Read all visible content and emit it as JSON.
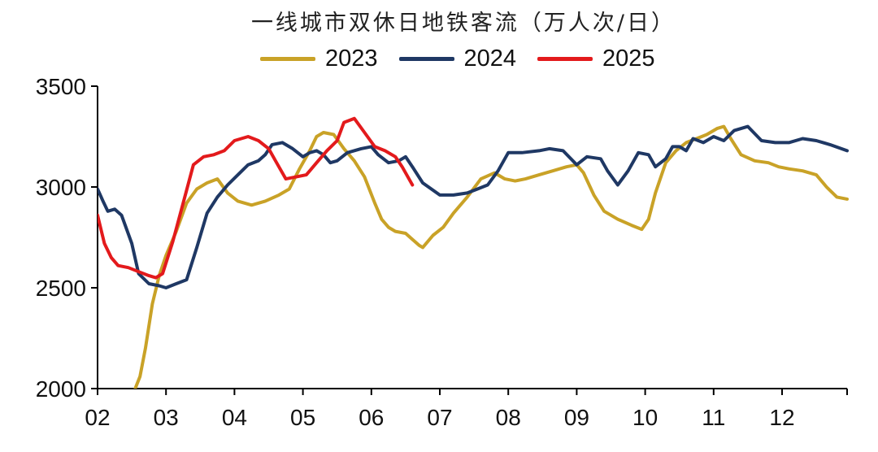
{
  "chart_data": {
    "type": "line",
    "title": "一线城市双休日地铁客流（万人次/日）",
    "xlabel": "",
    "ylabel": "",
    "x_ticks": [
      "02",
      "03",
      "04",
      "05",
      "06",
      "07",
      "08",
      "09",
      "10",
      "11",
      "12"
    ],
    "y_ticks": [
      "2000",
      "2500",
      "3000",
      "3500"
    ],
    "ylim": [
      2000,
      3500
    ],
    "xlim": [
      2.0,
      12.95
    ],
    "grid": false,
    "legend_position": "top-center",
    "series": [
      {
        "name": "2023",
        "color": "#c9a227",
        "x": [
          2.55,
          2.62,
          2.7,
          2.8,
          2.9,
          3.0,
          3.15,
          3.3,
          3.45,
          3.6,
          3.75,
          3.9,
          4.05,
          4.25,
          4.45,
          4.65,
          4.8,
          4.95,
          5.1,
          5.2,
          5.3,
          5.45,
          5.6,
          5.75,
          5.9,
          6.05,
          6.15,
          6.25,
          6.35,
          6.5,
          6.6,
          6.7,
          6.75,
          6.9,
          7.05,
          7.2,
          7.4,
          7.6,
          7.8,
          7.95,
          8.1,
          8.25,
          8.45,
          8.65,
          8.85,
          9.0,
          9.1,
          9.25,
          9.4,
          9.6,
          9.8,
          9.95,
          10.05,
          10.15,
          10.3,
          10.45,
          10.6,
          10.75,
          10.9,
          11.05,
          11.15,
          11.25,
          11.4,
          11.6,
          11.8,
          11.95,
          12.1,
          12.3,
          12.5,
          12.65,
          12.8,
          12.95
        ],
        "y": [
          2000,
          2060,
          2200,
          2420,
          2560,
          2660,
          2780,
          2920,
          2990,
          3020,
          3040,
          2970,
          2930,
          2910,
          2930,
          2960,
          2990,
          3090,
          3180,
          3250,
          3270,
          3260,
          3190,
          3130,
          3050,
          2920,
          2840,
          2800,
          2780,
          2770,
          2740,
          2710,
          2700,
          2760,
          2800,
          2870,
          2950,
          3040,
          3070,
          3040,
          3030,
          3040,
          3060,
          3080,
          3100,
          3110,
          3070,
          2960,
          2880,
          2840,
          2810,
          2790,
          2840,
          2970,
          3120,
          3180,
          3220,
          3240,
          3260,
          3290,
          3300,
          3240,
          3160,
          3130,
          3120,
          3100,
          3090,
          3080,
          3060,
          3000,
          2950,
          2940
        ]
      },
      {
        "name": "2024",
        "color": "#1f3864",
        "x": [
          2.0,
          2.08,
          2.15,
          2.25,
          2.35,
          2.5,
          2.6,
          2.75,
          2.9,
          3.0,
          3.15,
          3.3,
          3.45,
          3.6,
          3.75,
          3.9,
          4.05,
          4.2,
          4.35,
          4.45,
          4.55,
          4.7,
          4.85,
          5.0,
          5.1,
          5.2,
          5.3,
          5.4,
          5.5,
          5.65,
          5.85,
          6.0,
          6.1,
          6.25,
          6.4,
          6.5,
          6.6,
          6.75,
          7.0,
          7.2,
          7.4,
          7.55,
          7.7,
          7.85,
          8.0,
          8.2,
          8.45,
          8.6,
          8.8,
          9.0,
          9.15,
          9.35,
          9.45,
          9.6,
          9.75,
          9.9,
          10.05,
          10.15,
          10.3,
          10.4,
          10.5,
          10.6,
          10.7,
          10.85,
          11.0,
          11.15,
          11.3,
          11.5,
          11.7,
          11.9,
          12.1,
          12.3,
          12.5,
          12.7,
          12.95
        ],
        "y": [
          2990,
          2930,
          2880,
          2890,
          2860,
          2720,
          2570,
          2520,
          2510,
          2500,
          2520,
          2540,
          2700,
          2870,
          2950,
          3010,
          3060,
          3110,
          3130,
          3160,
          3210,
          3220,
          3190,
          3150,
          3170,
          3180,
          3160,
          3120,
          3130,
          3170,
          3190,
          3200,
          3160,
          3120,
          3130,
          3150,
          3100,
          3020,
          2960,
          2960,
          2970,
          2990,
          3010,
          3080,
          3170,
          3170,
          3180,
          3190,
          3180,
          3110,
          3150,
          3140,
          3080,
          3010,
          3080,
          3170,
          3160,
          3100,
          3140,
          3200,
          3200,
          3180,
          3240,
          3220,
          3250,
          3230,
          3280,
          3300,
          3230,
          3220,
          3220,
          3240,
          3230,
          3210,
          3180
        ]
      },
      {
        "name": "2025",
        "color": "#e31a1c",
        "x": [
          2.0,
          2.1,
          2.2,
          2.3,
          2.45,
          2.6,
          2.75,
          2.85,
          2.95,
          3.1,
          3.25,
          3.4,
          3.55,
          3.7,
          3.85,
          4.0,
          4.2,
          4.35,
          4.5,
          4.6,
          4.75,
          4.9,
          5.05,
          5.2,
          5.35,
          5.5,
          5.6,
          5.75,
          5.9,
          6.05,
          6.2,
          6.35,
          6.45,
          6.6
        ],
        "y": [
          2860,
          2720,
          2650,
          2610,
          2600,
          2580,
          2560,
          2550,
          2570,
          2730,
          2920,
          3110,
          3150,
          3160,
          3180,
          3230,
          3250,
          3230,
          3190,
          3130,
          3040,
          3050,
          3060,
          3120,
          3180,
          3230,
          3320,
          3340,
          3270,
          3200,
          3180,
          3150,
          3100,
          3010
        ]
      }
    ]
  }
}
